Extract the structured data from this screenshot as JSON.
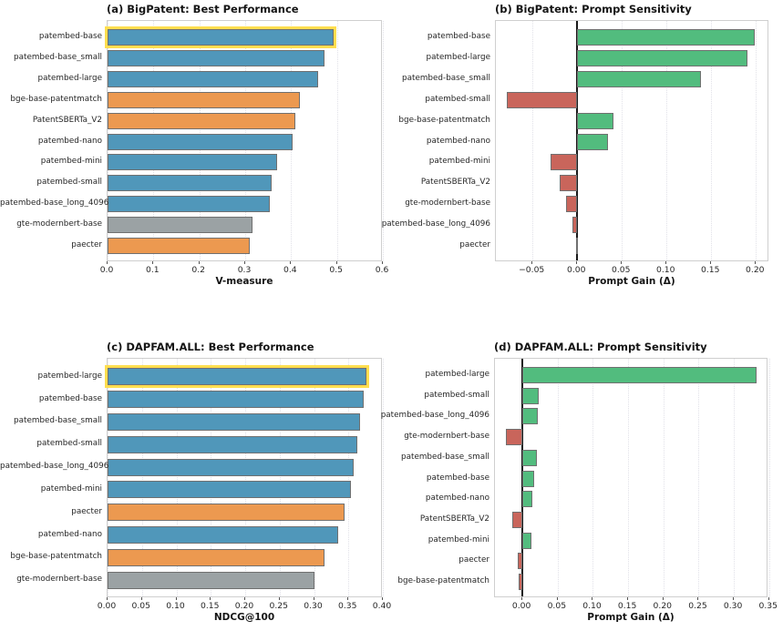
{
  "figure_background": "#ffffff",
  "colors": {
    "blue": "#5097BA",
    "orange": "#EC9950",
    "gray": "#9BA2A4",
    "green": "#52BC7E",
    "red": "#C9655B",
    "highlight": "#FFDE4F",
    "bar_edge": "#707070",
    "zero_line": "#1a1a1a"
  },
  "chart_data": [
    {
      "id": "a",
      "type": "bar",
      "orientation": "horizontal",
      "title": "(a) BigPatent: Best Performance",
      "xlabel": "V-measure",
      "xlim": [
        0,
        0.6
      ],
      "grid": true,
      "zero_line": false,
      "legend": "none",
      "xticks": [
        {
          "v": 0.0,
          "label": "0.0"
        },
        {
          "v": 0.1,
          "label": "0.1"
        },
        {
          "v": 0.2,
          "label": "0.2"
        },
        {
          "v": 0.3,
          "label": "0.3"
        },
        {
          "v": 0.4,
          "label": "0.4"
        },
        {
          "v": 0.5,
          "label": "0.5"
        },
        {
          "v": 0.6,
          "label": "0.6"
        }
      ],
      "bars": [
        {
          "label": "patembed-base",
          "value": 0.493,
          "color": "blue",
          "highlight": true
        },
        {
          "label": "patembed-base_small",
          "value": 0.472,
          "color": "blue",
          "highlight": false
        },
        {
          "label": "patembed-large",
          "value": 0.459,
          "color": "blue",
          "highlight": false
        },
        {
          "label": "bge-base-patentmatch",
          "value": 0.42,
          "color": "orange",
          "highlight": false
        },
        {
          "label": "PatentSBERTa_V2",
          "value": 0.41,
          "color": "orange",
          "highlight": false
        },
        {
          "label": "patembed-nano",
          "value": 0.404,
          "color": "blue",
          "highlight": false
        },
        {
          "label": "patembed-mini",
          "value": 0.37,
          "color": "blue",
          "highlight": false
        },
        {
          "label": "patembed-small",
          "value": 0.358,
          "color": "blue",
          "highlight": false
        },
        {
          "label": "patembed-base_long_4096",
          "value": 0.354,
          "color": "blue",
          "highlight": false
        },
        {
          "label": "gte-modernbert-base",
          "value": 0.316,
          "color": "gray",
          "highlight": false
        },
        {
          "label": "paecter",
          "value": 0.31,
          "color": "orange",
          "highlight": false
        }
      ]
    },
    {
      "id": "b",
      "type": "bar",
      "orientation": "horizontal",
      "title": "(b) BigPatent: Prompt Sensitivity",
      "xlabel": "Prompt Gain (Δ)",
      "xlim": [
        -0.091,
        0.215
      ],
      "grid": true,
      "zero_line": true,
      "legend": "none",
      "xticks": [
        {
          "v": -0.05,
          "label": "−0.05"
        },
        {
          "v": 0.0,
          "label": "0.00"
        },
        {
          "v": 0.05,
          "label": "0.05"
        },
        {
          "v": 0.1,
          "label": "0.10"
        },
        {
          "v": 0.15,
          "label": "0.15"
        },
        {
          "v": 0.2,
          "label": "0.20"
        }
      ],
      "bars": [
        {
          "label": "patembed-base",
          "value": 0.199,
          "color": "green",
          "highlight": false
        },
        {
          "label": "patembed-large",
          "value": 0.191,
          "color": "green",
          "highlight": false
        },
        {
          "label": "patembed-base_small",
          "value": 0.139,
          "color": "green",
          "highlight": false
        },
        {
          "label": "patembed-small",
          "value": -0.079,
          "color": "red",
          "highlight": false
        },
        {
          "label": "bge-base-patentmatch",
          "value": 0.041,
          "color": "green",
          "highlight": false
        },
        {
          "label": "patembed-nano",
          "value": 0.034,
          "color": "green",
          "highlight": false
        },
        {
          "label": "patembed-mini",
          "value": -0.03,
          "color": "red",
          "highlight": false
        },
        {
          "label": "PatentSBERTa_V2",
          "value": -0.02,
          "color": "red",
          "highlight": false
        },
        {
          "label": "gte-modernbert-base",
          "value": -0.012,
          "color": "red",
          "highlight": false
        },
        {
          "label": "patembed-base_long_4096",
          "value": -0.005,
          "color": "red",
          "highlight": false
        },
        {
          "label": "paecter",
          "value": -0.001,
          "color": "red",
          "highlight": false
        }
      ]
    },
    {
      "id": "c",
      "type": "bar",
      "orientation": "horizontal",
      "title": "(c) DAPFAM.ALL: Best Performance",
      "xlabel": "NDCG@100",
      "xlim": [
        0,
        0.4
      ],
      "grid": true,
      "zero_line": false,
      "legend": "none",
      "xticks": [
        {
          "v": 0.0,
          "label": "0.00"
        },
        {
          "v": 0.05,
          "label": "0.05"
        },
        {
          "v": 0.1,
          "label": "0.10"
        },
        {
          "v": 0.15,
          "label": "0.15"
        },
        {
          "v": 0.2,
          "label": "0.20"
        },
        {
          "v": 0.25,
          "label": "0.25"
        },
        {
          "v": 0.3,
          "label": "0.30"
        },
        {
          "v": 0.35,
          "label": "0.35"
        },
        {
          "v": 0.4,
          "label": "0.40"
        }
      ],
      "bars": [
        {
          "label": "patembed-large",
          "value": 0.376,
          "color": "blue",
          "highlight": true
        },
        {
          "label": "patembed-base",
          "value": 0.372,
          "color": "blue",
          "highlight": false
        },
        {
          "label": "patembed-base_small",
          "value": 0.367,
          "color": "blue",
          "highlight": false
        },
        {
          "label": "patembed-small",
          "value": 0.363,
          "color": "blue",
          "highlight": false
        },
        {
          "label": "patembed-base_long_4096",
          "value": 0.358,
          "color": "blue",
          "highlight": false
        },
        {
          "label": "patembed-mini",
          "value": 0.354,
          "color": "blue",
          "highlight": false
        },
        {
          "label": "paecter",
          "value": 0.345,
          "color": "orange",
          "highlight": false
        },
        {
          "label": "patembed-nano",
          "value": 0.335,
          "color": "blue",
          "highlight": false
        },
        {
          "label": "bge-base-patentmatch",
          "value": 0.315,
          "color": "orange",
          "highlight": false
        },
        {
          "label": "gte-modernbert-base",
          "value": 0.3,
          "color": "gray",
          "highlight": false
        }
      ]
    },
    {
      "id": "d",
      "type": "bar",
      "orientation": "horizontal",
      "title": "(d) DAPFAM.ALL: Prompt Sensitivity",
      "xlabel": "Prompt Gain (Δ)",
      "xlim": [
        -0.039,
        0.349
      ],
      "grid": true,
      "zero_line": true,
      "legend": "none",
      "xticks": [
        {
          "v": 0.0,
          "label": "0.00"
        },
        {
          "v": 0.05,
          "label": "0.05"
        },
        {
          "v": 0.1,
          "label": "0.10"
        },
        {
          "v": 0.15,
          "label": "0.15"
        },
        {
          "v": 0.2,
          "label": "0.20"
        },
        {
          "v": 0.25,
          "label": "0.25"
        },
        {
          "v": 0.3,
          "label": "0.30"
        },
        {
          "v": 0.35,
          "label": "0.35"
        }
      ],
      "bars": [
        {
          "label": "patembed-large",
          "value": 0.332,
          "color": "green",
          "highlight": false
        },
        {
          "label": "patembed-small",
          "value": 0.023,
          "color": "green",
          "highlight": false
        },
        {
          "label": "patembed-base_long_4096",
          "value": 0.022,
          "color": "green",
          "highlight": false
        },
        {
          "label": "gte-modernbert-base",
          "value": -0.023,
          "color": "red",
          "highlight": false
        },
        {
          "label": "patembed-base_small",
          "value": 0.021,
          "color": "green",
          "highlight": false
        },
        {
          "label": "patembed-base",
          "value": 0.017,
          "color": "green",
          "highlight": false
        },
        {
          "label": "patembed-nano",
          "value": 0.014,
          "color": "green",
          "highlight": false
        },
        {
          "label": "PatentSBERTa_V2",
          "value": -0.015,
          "color": "red",
          "highlight": false
        },
        {
          "label": "patembed-mini",
          "value": 0.013,
          "color": "green",
          "highlight": false
        },
        {
          "label": "paecter",
          "value": -0.007,
          "color": "red",
          "highlight": false
        },
        {
          "label": "bge-base-patentmatch",
          "value": -0.006,
          "color": "red",
          "highlight": false
        }
      ]
    }
  ]
}
